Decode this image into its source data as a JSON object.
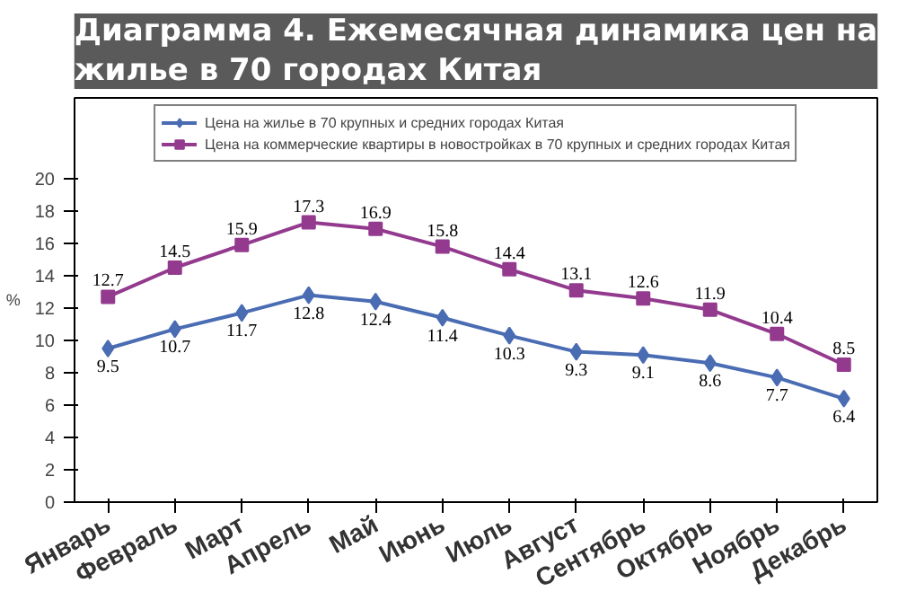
{
  "chart_data": {
    "type": "line",
    "title": "Диаграмма 4. Ежемесячная динамика цен на жилье в 70 городах Китая",
    "ylabel": "%",
    "categories": [
      "Январь",
      "Февраль",
      "Март",
      "Апрель",
      "Май",
      "Июнь",
      "Июль",
      "Август",
      "Сентябрь",
      "Октябрь",
      "Ноябрь",
      "Декабрь"
    ],
    "series": [
      {
        "name": "Цена на жилье в 70 крупных и средних городах Китая",
        "color": "#4a6cb3",
        "marker": "diamond",
        "values": [
          9.5,
          10.7,
          11.7,
          12.8,
          12.4,
          11.4,
          10.3,
          9.3,
          9.1,
          8.6,
          7.7,
          6.4
        ]
      },
      {
        "name": "Цена на коммерческие квартиры в новостройках в 70 крупных и средних городах Китая",
        "color": "#933a8f",
        "marker": "square",
        "values": [
          12.7,
          14.5,
          15.9,
          17.3,
          16.9,
          15.8,
          14.4,
          13.1,
          12.6,
          11.9,
          10.4,
          8.5
        ]
      }
    ],
    "ylim": [
      0,
      25
    ],
    "yticks": [
      0,
      2,
      4,
      6,
      8,
      10,
      12,
      14,
      16,
      18,
      20
    ],
    "data_labels": true,
    "legend": "top",
    "grid": false,
    "line_style": "solid"
  }
}
